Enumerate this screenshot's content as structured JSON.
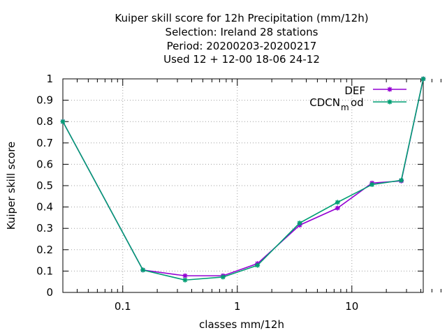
{
  "chart_data": {
    "type": "line",
    "title_lines": [
      "Kuiper skill score  for 12h Precipitation (mm/12h)",
      "Selection: Ireland      28 stations",
      "Period: 20200203-20200217",
      "Used  12 + 12-00 18-06 24-12"
    ],
    "xlabel": "classes mm/12h",
    "ylabel": "Kuiper skill score",
    "x_scale": "log",
    "xlim": [
      0.03,
      42
    ],
    "ylim": [
      0,
      1
    ],
    "y_ticks": [
      "0",
      "0.1",
      "0.2",
      "0.3",
      "0.4",
      "0.5",
      "0.6",
      "0.7",
      "0.8",
      "0.9",
      "1"
    ],
    "x_tick_labels": [
      "0.1",
      "1",
      "10"
    ],
    "grid": true,
    "legend_position": "top-right",
    "series": [
      {
        "name": "DEF",
        "color": "#9400d3",
        "marker": "asterisk",
        "x": [
          0.03,
          0.15,
          0.35,
          0.75,
          1.5,
          3.5,
          7.5,
          15,
          27,
          42
        ],
        "y": [
          0.8,
          0.105,
          0.078,
          0.078,
          0.135,
          0.315,
          0.395,
          0.512,
          0.522,
          1.0
        ]
      },
      {
        "name": "CDCN",
        "name_subscript": "m",
        "name_suffix": "od",
        "color": "#009e73",
        "marker": "asterisk",
        "x": [
          0.03,
          0.15,
          0.35,
          0.75,
          1.5,
          3.5,
          7.5,
          15,
          27,
          42
        ],
        "y": [
          0.8,
          0.105,
          0.058,
          0.072,
          0.127,
          0.325,
          0.422,
          0.505,
          0.525,
          1.0
        ]
      }
    ]
  }
}
